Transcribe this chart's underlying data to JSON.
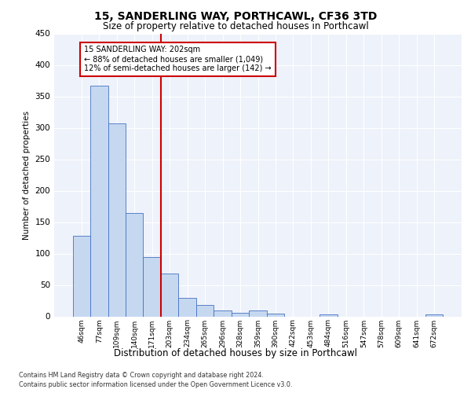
{
  "title": "15, SANDERLING WAY, PORTHCAWL, CF36 3TD",
  "subtitle": "Size of property relative to detached houses in Porthcawl",
  "xlabel": "Distribution of detached houses by size in Porthcawl",
  "ylabel": "Number of detached properties",
  "categories": [
    "46sqm",
    "77sqm",
    "109sqm",
    "140sqm",
    "171sqm",
    "203sqm",
    "234sqm",
    "265sqm",
    "296sqm",
    "328sqm",
    "359sqm",
    "390sqm",
    "422sqm",
    "453sqm",
    "484sqm",
    "516sqm",
    "547sqm",
    "578sqm",
    "609sqm",
    "641sqm",
    "672sqm"
  ],
  "values": [
    128,
    367,
    307,
    164,
    95,
    68,
    30,
    18,
    9,
    6,
    9,
    4,
    0,
    0,
    3,
    0,
    0,
    0,
    0,
    0,
    3
  ],
  "bar_color": "#c5d8f0",
  "bar_edge_color": "#4472c4",
  "vline_x_index": 5,
  "vline_color": "#cc0000",
  "annotation_line1": "15 SANDERLING WAY: 202sqm",
  "annotation_line2": "← 88% of detached houses are smaller (1,049)",
  "annotation_line3": "12% of semi-detached houses are larger (142) →",
  "annotation_box_color": "#cc0000",
  "ylim": [
    0,
    450
  ],
  "yticks": [
    0,
    50,
    100,
    150,
    200,
    250,
    300,
    350,
    400,
    450
  ],
  "footer_line1": "Contains HM Land Registry data © Crown copyright and database right 2024.",
  "footer_line2": "Contains public sector information licensed under the Open Government Licence v3.0.",
  "background_color": "#eef2fa",
  "grid_color": "#ffffff",
  "fig_bg_color": "#ffffff"
}
